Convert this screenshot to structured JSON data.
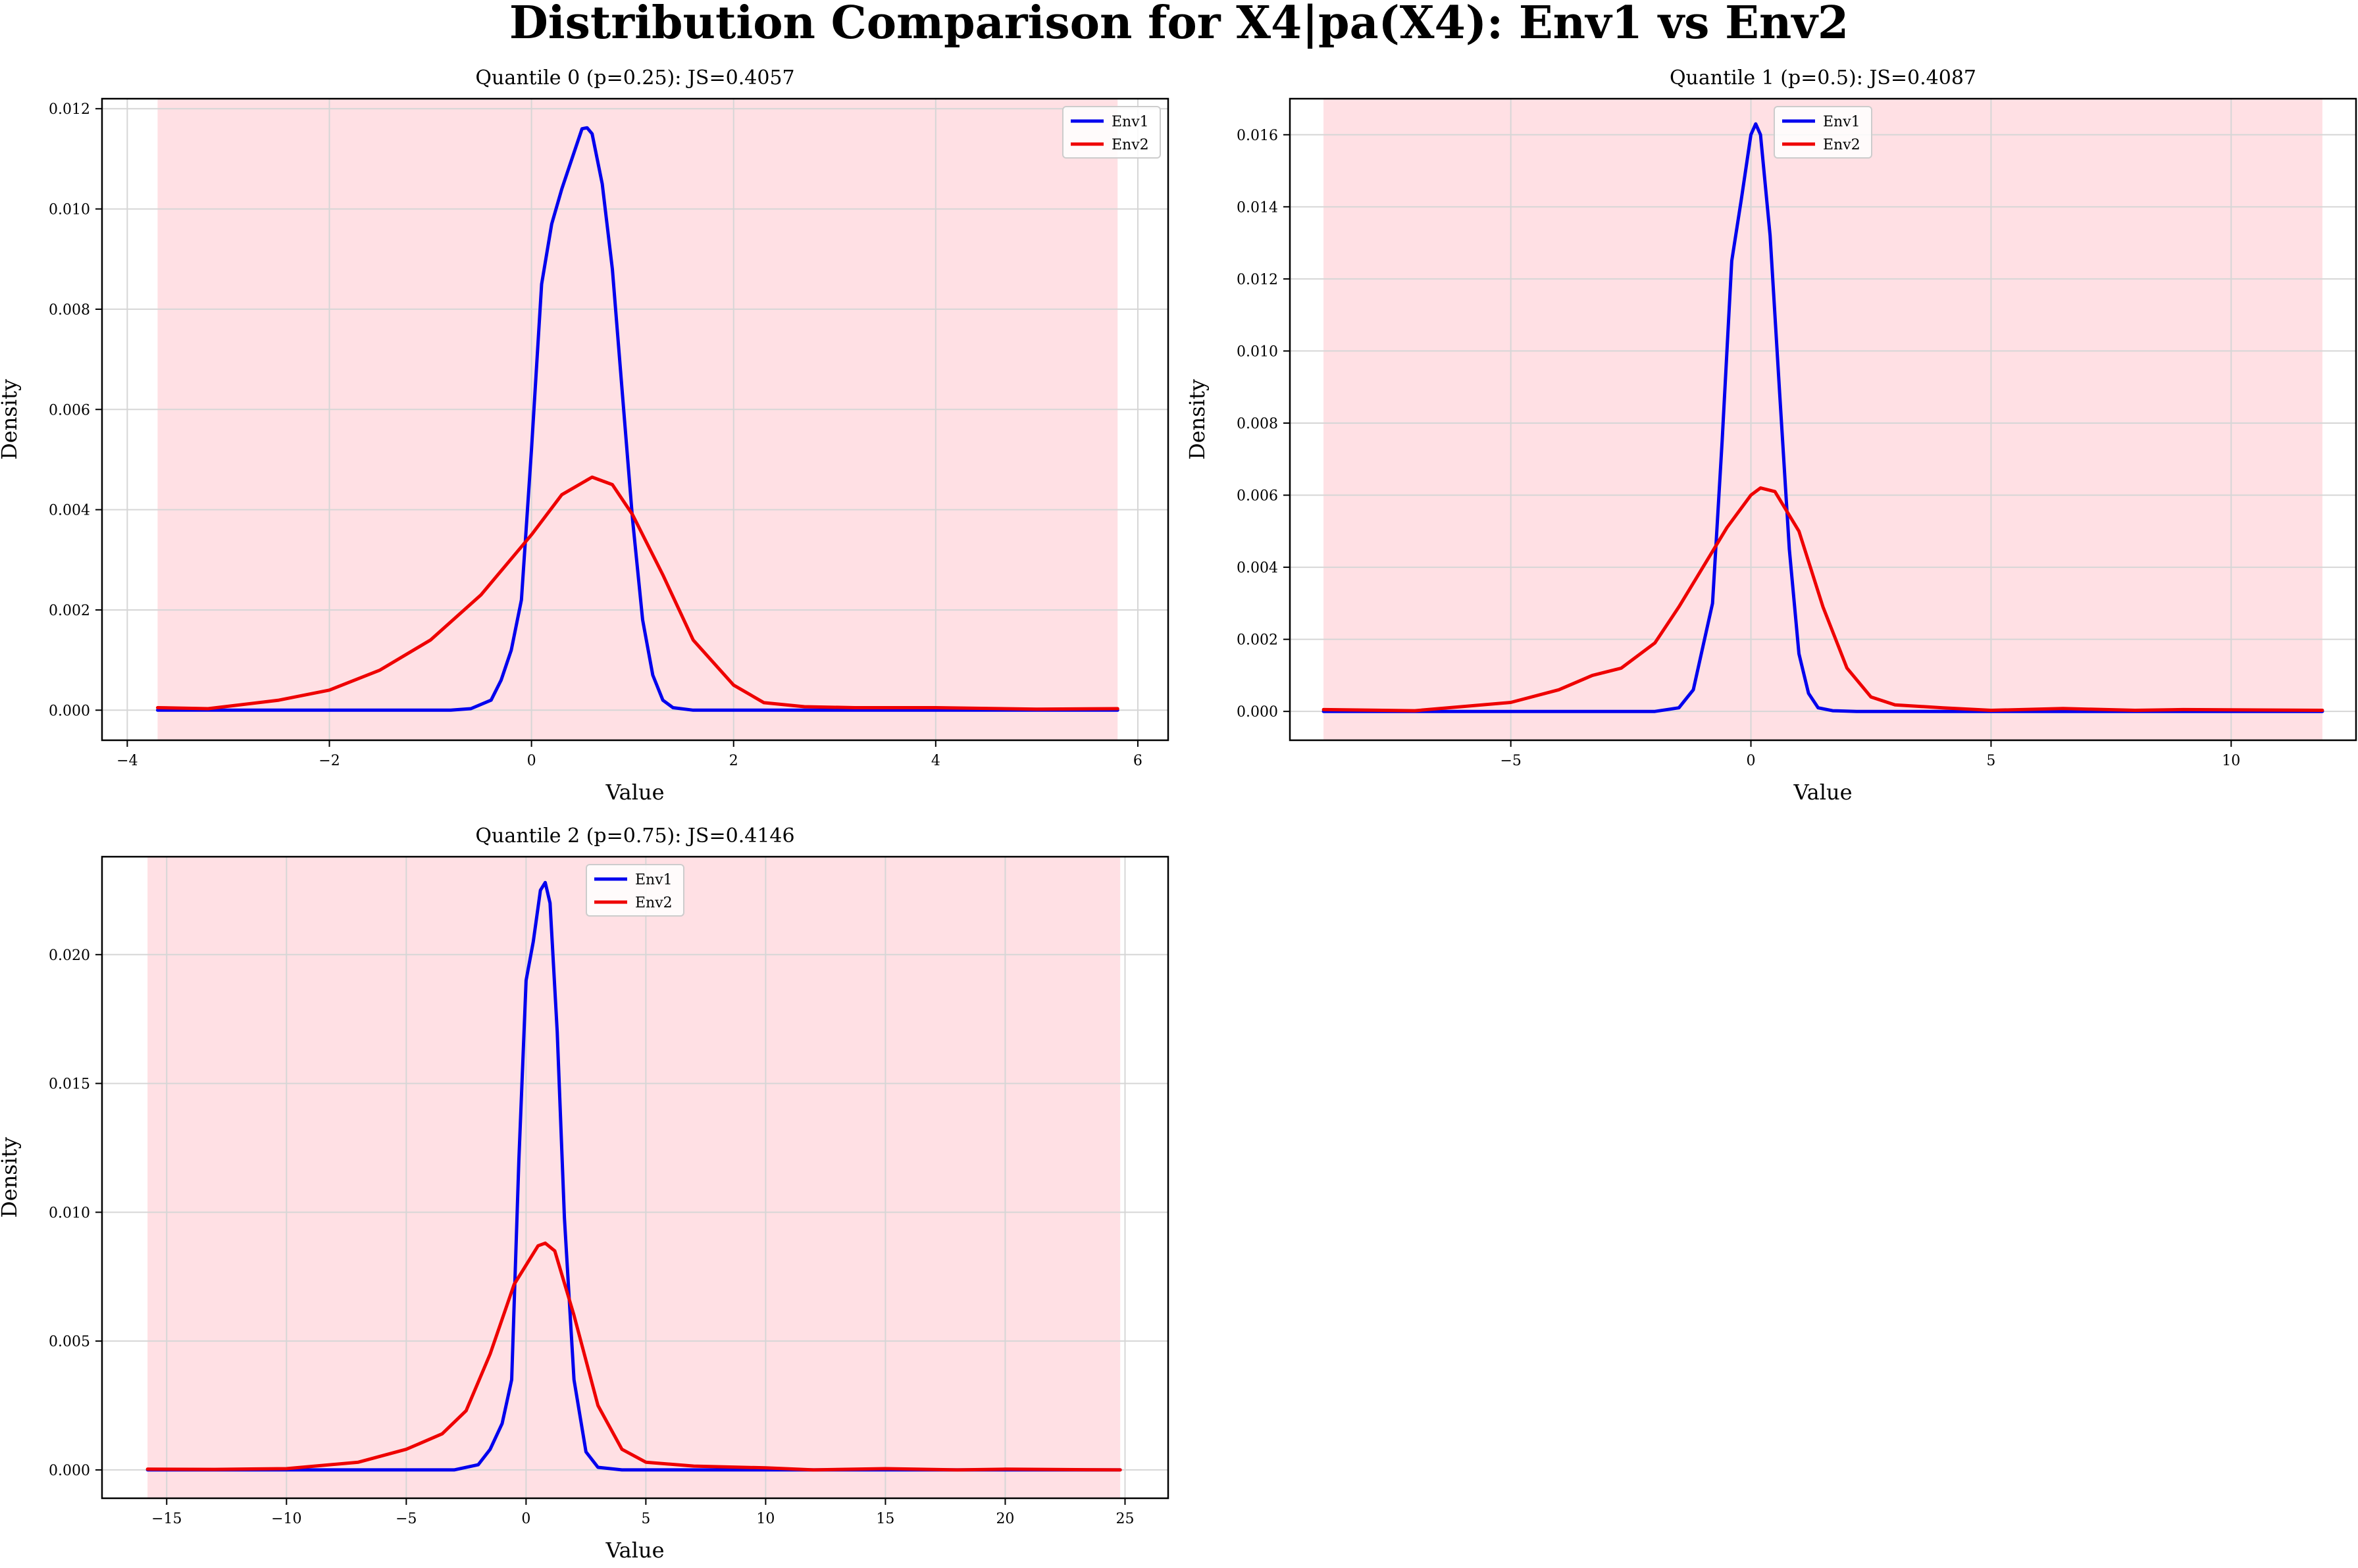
{
  "figure": {
    "suptitle": "Distribution Comparison for X4|pa(X4): Env1 vs Env2",
    "colors": {
      "Env1": "#0000ee",
      "Env2": "#ee0000",
      "shade": "#ffe0e4",
      "grid": "#d6d6d6"
    }
  },
  "chart_data": [
    {
      "type": "line",
      "title": "Quantile 0 (p=0.25): JS=0.4057",
      "xlabel": "Value",
      "ylabel": "Density",
      "xlim": [
        -4.25,
        6.3
      ],
      "ylim": [
        -0.0006,
        0.0122
      ],
      "xticks": [
        -4,
        -2,
        0,
        2,
        4,
        6
      ],
      "xtick_labels": [
        "−4",
        "−2",
        "0",
        "2",
        "4",
        "6"
      ],
      "yticks": [
        0.0,
        0.002,
        0.004,
        0.006,
        0.008,
        0.01,
        0.012
      ],
      "ytick_labels": [
        "0.000",
        "0.002",
        "0.004",
        "0.006",
        "0.008",
        "0.010",
        "0.012"
      ],
      "grid": true,
      "legend": "upper right",
      "shaded_region": [
        -3.7,
        5.8
      ],
      "series": [
        {
          "name": "Env1",
          "x": [
            -3.7,
            -1.5,
            -0.8,
            -0.6,
            -0.4,
            -0.3,
            -0.2,
            -0.1,
            0.0,
            0.1,
            0.2,
            0.3,
            0.4,
            0.5,
            0.55,
            0.6,
            0.7,
            0.8,
            0.9,
            1.0,
            1.1,
            1.2,
            1.3,
            1.4,
            1.6,
            2.0,
            3.0,
            5.8
          ],
          "values": [
            0.0,
            0.0,
            0.0,
            3e-05,
            0.0002,
            0.0006,
            0.0012,
            0.0022,
            0.0052,
            0.0085,
            0.0097,
            0.0104,
            0.011,
            0.0116,
            0.01162,
            0.0115,
            0.0105,
            0.0088,
            0.0063,
            0.0038,
            0.0018,
            0.0007,
            0.0002,
            5e-05,
            0.0,
            0.0,
            0.0,
            0.0
          ]
        },
        {
          "name": "Env2",
          "x": [
            -3.7,
            -3.2,
            -2.5,
            -2.0,
            -1.5,
            -1.0,
            -0.5,
            0.0,
            0.3,
            0.6,
            0.8,
            1.0,
            1.3,
            1.6,
            2.0,
            2.3,
            2.7,
            3.2,
            4.0,
            5.0,
            5.8
          ],
          "values": [
            5e-05,
            3e-05,
            0.0002,
            0.0004,
            0.0008,
            0.0014,
            0.0023,
            0.0035,
            0.0043,
            0.00465,
            0.0045,
            0.0039,
            0.0027,
            0.0014,
            0.0005,
            0.00015,
            7e-05,
            5e-05,
            5e-05,
            2e-05,
            3e-05
          ]
        }
      ]
    },
    {
      "type": "line",
      "title": "Quantile 1 (p=0.5): JS=0.4087",
      "xlabel": "Value",
      "ylabel": "Density",
      "xlim": [
        -9.6,
        12.6
      ],
      "ylim": [
        -0.0008,
        0.017
      ],
      "xticks": [
        -5,
        0,
        5,
        10
      ],
      "xtick_labels": [
        "−5",
        "0",
        "5",
        "10"
      ],
      "yticks": [
        0.0,
        0.002,
        0.004,
        0.006,
        0.008,
        0.01,
        0.012,
        0.014,
        0.016
      ],
      "ytick_labels": [
        "0.000",
        "0.002",
        "0.004",
        "0.006",
        "0.008",
        "0.010",
        "0.012",
        "0.014",
        "0.016"
      ],
      "grid": true,
      "legend": "upper center",
      "shaded_region": [
        -8.9,
        11.9
      ],
      "series": [
        {
          "name": "Env1",
          "x": [
            -8.9,
            -2.0,
            -1.5,
            -1.2,
            -1.0,
            -0.8,
            -0.6,
            -0.4,
            -0.2,
            0.0,
            0.1,
            0.2,
            0.4,
            0.6,
            0.8,
            1.0,
            1.2,
            1.4,
            1.7,
            2.2,
            5.0,
            11.9
          ],
          "values": [
            0.0,
            0.0,
            0.0001,
            0.0006,
            0.0018,
            0.003,
            0.0075,
            0.0125,
            0.0142,
            0.016,
            0.0163,
            0.016,
            0.0132,
            0.0088,
            0.0045,
            0.0016,
            0.0005,
            0.0001,
            2e-05,
            0.0,
            0.0,
            0.0
          ]
        },
        {
          "name": "Env2",
          "x": [
            -8.9,
            -7.0,
            -5.0,
            -4.0,
            -3.3,
            -2.7,
            -2.0,
            -1.5,
            -1.0,
            -0.5,
            0.0,
            0.2,
            0.5,
            1.0,
            1.5,
            2.0,
            2.5,
            3.0,
            4.0,
            5.0,
            6.5,
            8.0,
            9.0,
            11.9
          ],
          "values": [
            5e-05,
            2e-05,
            0.00025,
            0.0006,
            0.001,
            0.0012,
            0.0019,
            0.0029,
            0.004,
            0.0051,
            0.006,
            0.0062,
            0.0061,
            0.005,
            0.0029,
            0.0012,
            0.0004,
            0.00018,
            0.0001,
            3e-05,
            8e-05,
            3e-05,
            5e-05,
            3e-05
          ]
        }
      ]
    },
    {
      "type": "line",
      "title": "Quantile 2 (p=0.75): JS=0.4146",
      "xlabel": "Value",
      "ylabel": "Density",
      "xlim": [
        -17.7,
        26.8
      ],
      "ylim": [
        -0.0011,
        0.0238
      ],
      "xticks": [
        -15,
        -10,
        -5,
        0,
        5,
        10,
        15,
        20,
        25
      ],
      "xtick_labels": [
        "−15",
        "−10",
        "−5",
        "0",
        "5",
        "10",
        "15",
        "20",
        "25"
      ],
      "yticks": [
        0.0,
        0.005,
        0.01,
        0.015,
        0.02
      ],
      "ytick_labels": [
        "0.000",
        "0.005",
        "0.010",
        "0.015",
        "0.020"
      ],
      "grid": true,
      "legend": "upper center",
      "shaded_region": [
        -15.8,
        24.8
      ],
      "series": [
        {
          "name": "Env1",
          "x": [
            -15.8,
            -3.0,
            -2.0,
            -1.5,
            -1.0,
            -0.6,
            -0.3,
            0.0,
            0.3,
            0.6,
            0.8,
            1.0,
            1.3,
            1.6,
            2.0,
            2.5,
            3.0,
            4.0,
            24.8
          ],
          "values": [
            0.0,
            0.0,
            0.0002,
            0.0008,
            0.0018,
            0.0035,
            0.012,
            0.019,
            0.0205,
            0.0225,
            0.0228,
            0.022,
            0.017,
            0.0098,
            0.0035,
            0.0007,
            0.0001,
            0.0,
            0.0
          ]
        },
        {
          "name": "Env2",
          "x": [
            -15.8,
            -13.0,
            -10.0,
            -7.0,
            -5.0,
            -3.5,
            -2.5,
            -1.5,
            -0.5,
            0.5,
            0.8,
            1.2,
            2.0,
            3.0,
            4.0,
            5.0,
            7.0,
            10.0,
            12.0,
            15.0,
            18.0,
            20.0,
            24.8
          ],
          "values": [
            3e-05,
            2e-05,
            5e-05,
            0.0003,
            0.0008,
            0.0014,
            0.0023,
            0.0045,
            0.0072,
            0.0087,
            0.0088,
            0.0085,
            0.006,
            0.0025,
            0.0008,
            0.0003,
            0.00015,
            8e-05,
            0.0,
            5e-05,
            0.0,
            3e-05,
            0.0
          ]
        }
      ]
    }
  ]
}
